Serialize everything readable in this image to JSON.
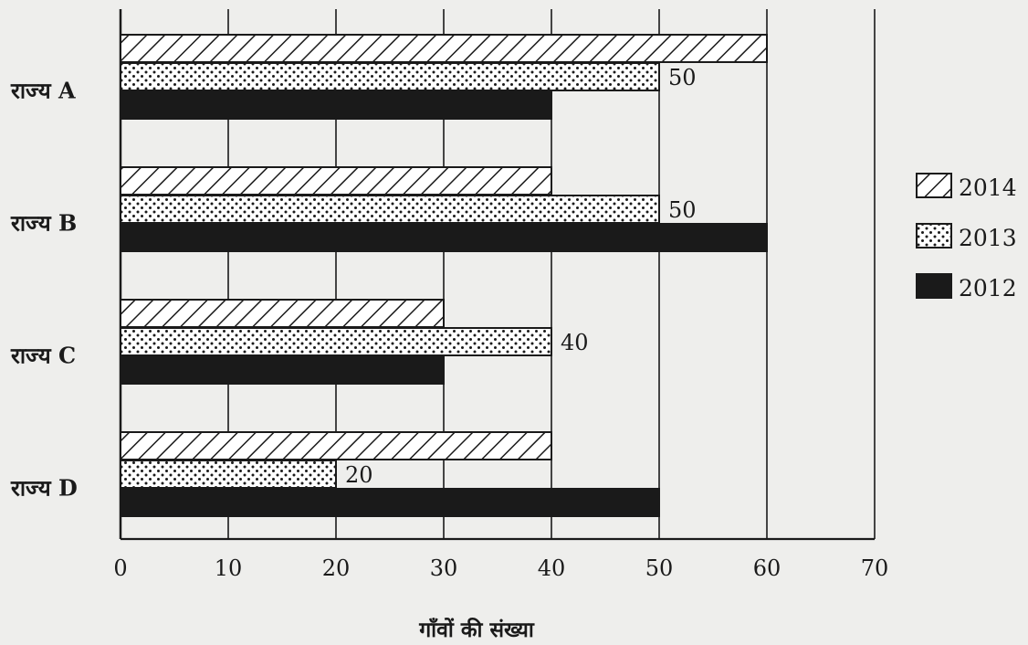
{
  "chart_data": {
    "type": "bar",
    "orientation": "horizontal",
    "categories": [
      "राज्य A",
      "राज्य B",
      "राज्य C",
      "राज्य D"
    ],
    "series": [
      {
        "name": "2014",
        "pattern": "hatch",
        "values": [
          60,
          40,
          30,
          40
        ]
      },
      {
        "name": "2013",
        "pattern": "dots",
        "values": [
          50,
          50,
          40,
          20
        ]
      },
      {
        "name": "2012",
        "pattern": "solid",
        "values": [
          40,
          60,
          30,
          50
        ]
      }
    ],
    "data_labels": [
      {
        "category_index": 0,
        "series_index": 1,
        "text": "50"
      },
      {
        "category_index": 1,
        "series_index": 1,
        "text": "50"
      },
      {
        "category_index": 2,
        "series_index": 1,
        "text": "40"
      },
      {
        "category_index": 3,
        "series_index": 1,
        "text": "20"
      }
    ],
    "x_ticks": [
      "0",
      "10",
      "20",
      "30",
      "40",
      "50",
      "60",
      "70"
    ],
    "xlim": [
      0,
      70
    ],
    "xlabel": "गाँवों की संख्या",
    "ylabel": "",
    "title": "",
    "grid": true,
    "legend_position": "right",
    "colors": {
      "ink": "#1a1a1a",
      "paper": "#eeeeec",
      "bar_fill": "#ffffff"
    }
  }
}
